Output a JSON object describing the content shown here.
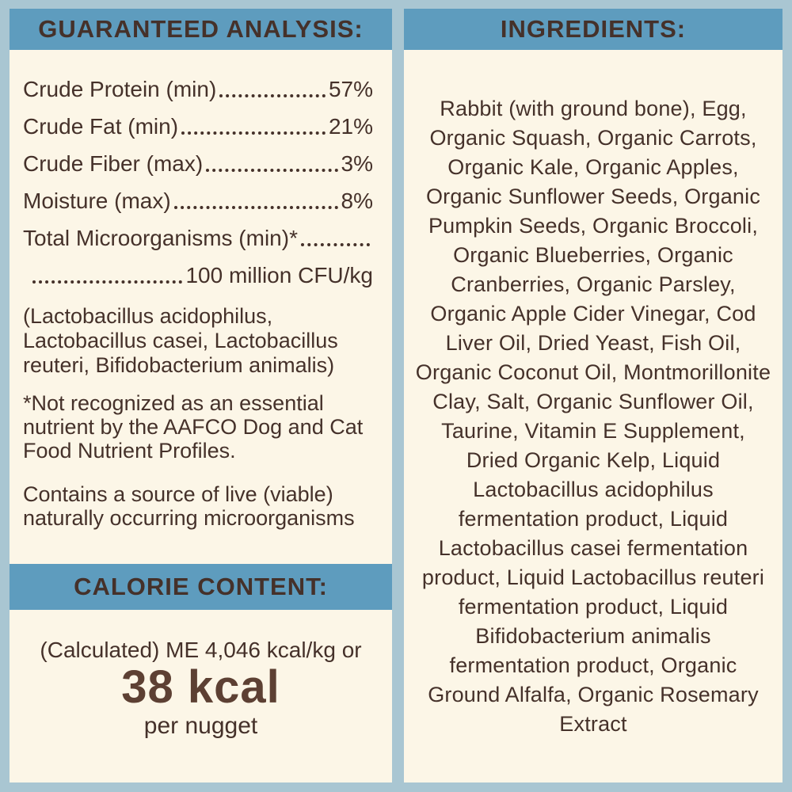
{
  "colors": {
    "background": "#a9c6d2",
    "header_bar": "#5e9cbe",
    "panel": "#fcf6e7",
    "text": "#45312a",
    "calorie_value": "#5d4033"
  },
  "guaranteed_analysis": {
    "title": "GUARANTEED ANALYSIS:",
    "rows": [
      {
        "label": "Crude Protein (min)",
        "value": "57%"
      },
      {
        "label": "Crude Fat (min)",
        "value": "21%"
      },
      {
        "label": "Crude Fiber (max)",
        "value": "3%"
      },
      {
        "label": "Moisture (max)",
        "value": "8%"
      }
    ],
    "microorganisms_label": "Total Microorganisms (min)*",
    "microorganisms_value": "100 million CFU/kg",
    "notes": [
      "(Lactobacillus acidophilus, Lactobacillus casei, Lactobacillus reuteri, Bifidobacterium animalis)",
      "*Not recognized as an essential nutrient by the AAFCO Dog and Cat Food Nutrient Profiles.",
      "Contains a source of live (viable) naturally occurring microorganisms"
    ]
  },
  "calorie_content": {
    "title": "CALORIE CONTENT:",
    "line": "(Calculated) ME 4,046 kcal/kg or",
    "value": "38 kcal",
    "unit": "per nugget"
  },
  "ingredients": {
    "title": "INGREDIENTS:",
    "text": "Rabbit (with ground bone), Egg, Organic Squash, Organic Carrots, Organic Kale, Organic Apples, Organic Sunflower Seeds, Organic Pumpkin Seeds, Organic Broccoli, Organic Blueberries, Organic Cranberries, Organic Parsley, Organic Apple Cider Vinegar, Cod Liver Oil, Dried Yeast, Fish Oil, Organic Coconut Oil, Montmorillonite Clay, Salt, Organic Sunflower Oil, Taurine, Vitamin E Supplement, Dried Organic Kelp, Liquid Lactobacillus acidophilus fermentation product, Liquid Lactobacillus casei fermentation product, Liquid Lactobacillus reuteri fermentation product, Liquid Bifidobacterium animalis fermentation product, Organic Ground Alfalfa, Organic Rosemary Extract"
  }
}
